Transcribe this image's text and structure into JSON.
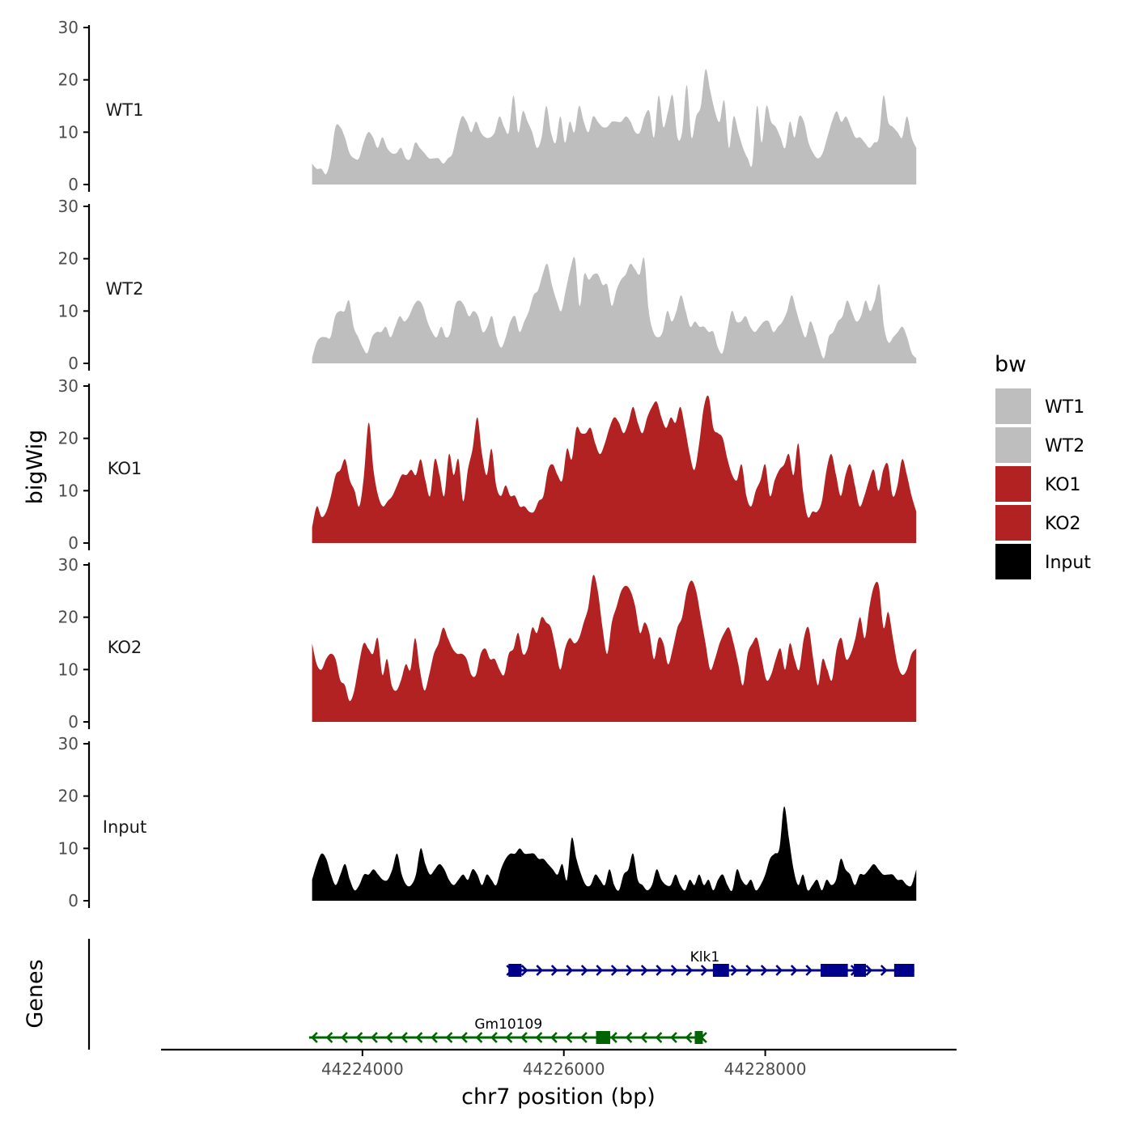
{
  "chart_data": {
    "type": "area",
    "xlabel": "chr7 position (bp)",
    "ylabel": "bigWig",
    "genes_label": "Genes",
    "x_ticks": [
      44224000,
      44226000,
      44228000
    ],
    "x_tick_labels": [
      "44224000",
      "44226000",
      "44228000"
    ],
    "xlim": [
      44222000,
      44229900
    ],
    "ylim": [
      0,
      30
    ],
    "y_ticks": [
      0,
      10,
      20,
      30
    ],
    "y_tick_labels": [
      "0",
      "10",
      "20",
      "30"
    ],
    "data_range": [
      44223500,
      44229500
    ],
    "legend": {
      "title": "bw",
      "items": [
        {
          "label": "WT1",
          "color": "#BEBEBE"
        },
        {
          "label": "WT2",
          "color": "#BEBEBE"
        },
        {
          "label": "KO1",
          "color": "#B22222"
        },
        {
          "label": "KO2",
          "color": "#B22222"
        },
        {
          "label": "Input",
          "color": "#000000"
        }
      ]
    },
    "series": [
      {
        "name": "WT1",
        "color": "#BEBEBE",
        "values": [
          4,
          3,
          3,
          2,
          5,
          11,
          11,
          9,
          6,
          5,
          5,
          8,
          10,
          9,
          7,
          9,
          7,
          6,
          6,
          7,
          5,
          5,
          8,
          7,
          6,
          5,
          5,
          5,
          4,
          5,
          6,
          10,
          13,
          12,
          10,
          12,
          10,
          9,
          9,
          10,
          13,
          11,
          10,
          17,
          10,
          14,
          12,
          10,
          7,
          9,
          15,
          10,
          8,
          13,
          8,
          12,
          10,
          15,
          12,
          10,
          13,
          12,
          11,
          11,
          12,
          12,
          12,
          13,
          12,
          10,
          10,
          13,
          14,
          9,
          17,
          11,
          14,
          17,
          9,
          10,
          19,
          9,
          13,
          15,
          22,
          18,
          14,
          12,
          16,
          7,
          13,
          10,
          7,
          5,
          4,
          15,
          8,
          15,
          12,
          11,
          9,
          7,
          12,
          9,
          13,
          12,
          8,
          6,
          5,
          6,
          9,
          12,
          14,
          12,
          13,
          11,
          9,
          9,
          8,
          7,
          8,
          9,
          17,
          12,
          11,
          10,
          9,
          13,
          9,
          7
        ]
      },
      {
        "name": "WT2",
        "color": "#BEBEBE",
        "values": [
          1,
          4,
          5,
          5,
          5,
          9,
          10,
          10,
          12,
          7,
          5,
          3,
          2,
          5,
          6,
          6,
          7,
          5,
          7,
          9,
          8,
          9,
          11,
          12,
          11,
          8,
          6,
          5,
          7,
          5,
          6,
          11,
          12,
          11,
          9,
          10,
          9,
          6,
          7,
          9,
          5,
          3,
          5,
          8,
          9,
          6,
          8,
          10,
          13,
          14,
          17,
          19,
          15,
          12,
          10,
          14,
          18,
          20,
          11,
          17,
          16,
          17,
          17,
          15,
          15,
          11,
          14,
          16,
          17,
          19,
          18,
          17,
          20,
          10,
          6,
          5,
          6,
          10,
          8,
          10,
          13,
          10,
          7,
          8,
          7,
          7,
          6,
          6,
          3,
          2,
          6,
          10,
          8,
          8,
          9,
          7,
          6,
          7,
          8,
          8,
          6,
          7,
          8,
          10,
          13,
          10,
          7,
          5,
          8,
          6,
          3,
          1,
          5,
          6,
          8,
          9,
          12,
          10,
          8,
          9,
          12,
          10,
          12,
          15,
          7,
          4,
          5,
          6,
          7,
          5,
          2,
          1
        ]
      },
      {
        "name": "KO1",
        "color": "#B22222",
        "values": [
          3,
          7,
          5,
          6,
          9,
          13,
          14,
          16,
          12,
          10,
          7,
          13,
          23,
          14,
          9,
          7,
          8,
          9,
          11,
          13,
          13,
          14,
          13,
          16,
          12,
          9,
          16,
          13,
          9,
          17,
          13,
          16,
          8,
          14,
          18,
          24,
          17,
          13,
          18,
          11,
          9,
          11,
          9,
          9,
          7,
          7,
          6,
          6,
          8,
          9,
          14,
          15,
          13,
          12,
          18,
          16,
          22,
          21,
          21,
          22,
          19,
          17,
          19,
          22,
          24,
          23,
          21,
          23,
          26,
          23,
          21,
          24,
          26,
          27,
          24,
          22,
          24,
          23,
          26,
          22,
          17,
          14,
          19,
          26,
          28,
          22,
          21,
          20,
          16,
          13,
          12,
          15,
          9,
          7,
          10,
          12,
          15,
          9,
          12,
          14,
          15,
          17,
          13,
          19,
          10,
          5,
          6,
          6,
          8,
          14,
          17,
          13,
          9,
          13,
          15,
          11,
          7,
          9,
          12,
          14,
          10,
          14,
          15,
          9,
          11,
          16,
          13,
          9,
          6
        ]
      },
      {
        "name": "KO2",
        "color": "#B22222",
        "values": [
          15,
          11,
          10,
          12,
          13,
          12,
          8,
          7,
          4,
          6,
          11,
          15,
          14,
          13,
          16,
          9,
          12,
          7,
          6,
          8,
          11,
          10,
          16,
          10,
          6,
          9,
          13,
          15,
          18,
          16,
          14,
          13,
          13,
          12,
          9,
          9,
          13,
          14,
          12,
          12,
          10,
          9,
          13,
          14,
          17,
          13,
          14,
          18,
          17,
          20,
          19,
          18,
          14,
          10,
          14,
          16,
          15,
          16,
          19,
          22,
          28,
          25,
          18,
          13,
          19,
          22,
          25,
          26,
          25,
          22,
          17,
          19,
          17,
          12,
          16,
          15,
          11,
          14,
          18,
          20,
          25,
          27,
          25,
          20,
          15,
          10,
          12,
          15,
          17,
          18,
          15,
          11,
          7,
          13,
          15,
          16,
          12,
          8,
          9,
          12,
          14,
          10,
          15,
          12,
          10,
          16,
          18,
          12,
          7,
          12,
          10,
          8,
          14,
          16,
          12,
          13,
          16,
          20,
          16,
          22,
          26,
          26,
          18,
          21,
          16,
          11,
          9,
          10,
          13,
          14
        ]
      },
      {
        "name": "Input",
        "color": "#000000",
        "values": [
          4,
          7,
          9,
          8,
          5,
          3,
          5,
          7,
          4,
          2,
          3,
          5,
          5,
          6,
          5,
          4,
          4,
          6,
          9,
          5,
          3,
          3,
          5,
          10,
          7,
          5,
          6,
          7,
          6,
          4,
          3,
          4,
          5,
          4,
          6,
          5,
          3,
          5,
          4,
          3,
          6,
          8,
          9,
          9,
          10,
          9,
          9,
          9,
          8,
          8,
          7,
          6,
          5,
          7,
          4,
          12,
          8,
          5,
          3,
          3,
          5,
          4,
          3,
          6,
          3,
          2,
          5,
          6,
          9,
          4,
          3,
          2,
          3,
          6,
          4,
          3,
          3,
          5,
          3,
          2,
          4,
          3,
          5,
          3,
          4,
          2,
          4,
          5,
          3,
          2,
          6,
          4,
          3,
          4,
          2,
          3,
          5,
          8,
          9,
          10,
          18,
          12,
          6,
          3,
          5,
          2,
          3,
          4,
          2,
          4,
          3,
          4,
          8,
          6,
          5,
          3,
          5,
          5,
          6,
          7,
          6,
          5,
          5,
          5,
          4,
          4,
          3,
          3,
          6
        ]
      }
    ],
    "genes": [
      {
        "name": "Klk1",
        "strand": "+",
        "color": "#00008B",
        "start": 44225450,
        "end": 44229480,
        "label_pos": 44227400,
        "exons": [
          [
            44225450,
            44225580
          ],
          [
            44227480,
            44227640
          ],
          [
            44228550,
            44228820
          ],
          [
            44228880,
            44229000
          ],
          [
            44229280,
            44229480
          ]
        ]
      },
      {
        "name": "Gm10109",
        "strand": "-",
        "color": "#006400",
        "start": 44223470,
        "end": 44227380,
        "label_pos": 44225450,
        "exons": [
          [
            44226320,
            44226460
          ],
          [
            44227300,
            44227380
          ]
        ]
      }
    ]
  }
}
